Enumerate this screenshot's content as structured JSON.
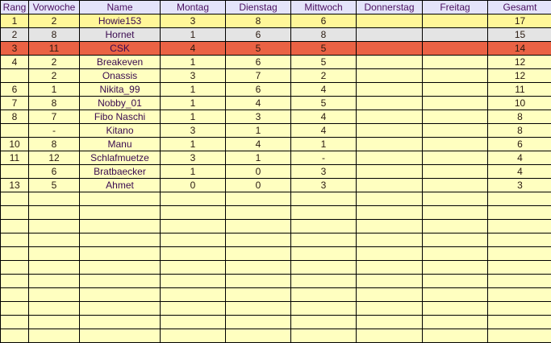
{
  "columns": [
    "Rang",
    "Vorwoche",
    "Name",
    "Montag",
    "Dienstag",
    "Mittwoch",
    "Donnerstag",
    "Freitag",
    "Gesamt"
  ],
  "colors": {
    "header": "#e4e4fa",
    "first": "#fff799",
    "second": "#e4e4e4",
    "third": "#ea6244",
    "default": "#ffffc0"
  },
  "rows": [
    [
      "1",
      "2",
      "Howie153",
      "3",
      "8",
      "6",
      "",
      "",
      "17"
    ],
    [
      "2",
      "8",
      "Hornet",
      "1",
      "6",
      "8",
      "",
      "",
      "15"
    ],
    [
      "3",
      "11",
      "CSK",
      "4",
      "5",
      "5",
      "",
      "",
      "14"
    ],
    [
      "4",
      "2",
      "Breakeven",
      "1",
      "6",
      "5",
      "",
      "",
      "12"
    ],
    [
      "",
      "2",
      "Onassis",
      "3",
      "7",
      "2",
      "",
      "",
      "12"
    ],
    [
      "6",
      "1",
      "Nikita_99",
      "1",
      "6",
      "4",
      "",
      "",
      "11"
    ],
    [
      "7",
      "8",
      "Nobby_01",
      "1",
      "4",
      "5",
      "",
      "",
      "10"
    ],
    [
      "8",
      "7",
      "Fibo Naschi",
      "1",
      "3",
      "4",
      "",
      "",
      "8"
    ],
    [
      "",
      "-",
      "Kitano",
      "3",
      "1",
      "4",
      "",
      "",
      "8"
    ],
    [
      "10",
      "8",
      "Manu",
      "1",
      "4",
      "1",
      "",
      "",
      "6"
    ],
    [
      "11",
      "12",
      "Schlafmuetze",
      "3",
      "1",
      "-",
      "",
      "",
      "4"
    ],
    [
      "",
      "6",
      "Bratbaecker",
      "1",
      "0",
      "3",
      "",
      "",
      "4"
    ],
    [
      "13",
      "5",
      "Ahmet",
      "0",
      "0",
      "3",
      "",
      "",
      "3"
    ]
  ]
}
